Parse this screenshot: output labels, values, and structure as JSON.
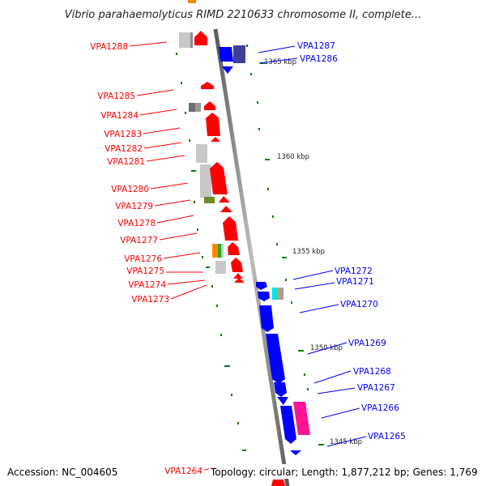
{
  "title": "Vibrio parahaemolyticus RIMD 2210633 chromosome II, complete...",
  "footer": {
    "accession": "Accession: NC_004605",
    "stats": "Topology: circular; Length: 1,877,212 bp; Genes: 1,769"
  },
  "colors": {
    "forward": "#ff0000",
    "reverse": "#0000ff",
    "backbone": "#808080",
    "ticks": "#008000"
  },
  "kbp_labels": [
    "1365 kbp",
    "1360 kbp",
    "1355 kbp",
    "1350 kbp",
    "1345 kbp"
  ],
  "left_genes": [
    "VPA1288",
    "VPA1285",
    "VPA1284",
    "VPA1283",
    "VPA1282",
    "VPA1281",
    "VPA1280",
    "VPA1279",
    "VPA1278",
    "VPA1277",
    "VPA1276",
    "VPA1275",
    "VPA1274",
    "VPA1273",
    "VPA1264"
  ],
  "right_genes": [
    "VPA1287",
    "VPA1286",
    "VPA1272",
    "VPA1271",
    "VPA1270",
    "VPA1269",
    "VPA1268",
    "VPA1267",
    "VPA1266",
    "VPA1265"
  ]
}
